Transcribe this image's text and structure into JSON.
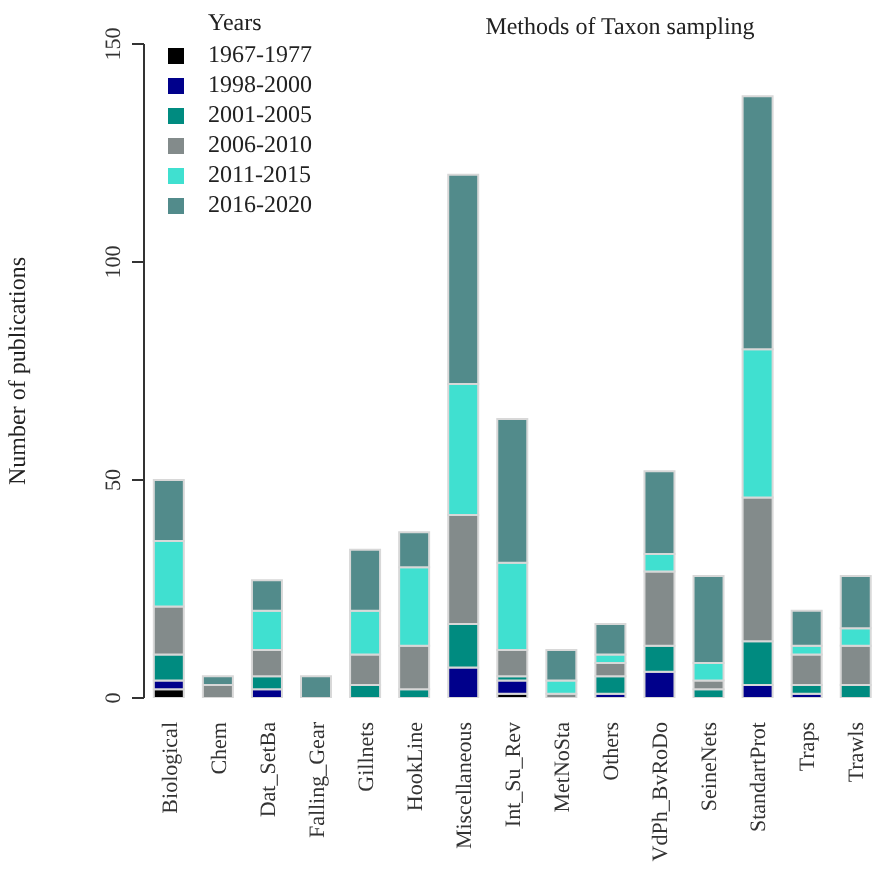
{
  "chart_data": {
    "type": "bar",
    "stacked": true,
    "title": "Methods of Taxon sampling",
    "ylabel": "Number of publications",
    "legend_title": "Years",
    "legend": "top left",
    "grid": false,
    "categories": [
      "Biological",
      "Chem",
      "Dat_SetBa",
      "Falling_Gear",
      "Gillnets",
      "HookLine",
      "Miscellaneous",
      "Int_Su_Rev",
      "MetNoSta",
      "Others",
      "VdPh_BvRoDo",
      "SeineNets",
      "StandartProt",
      "Traps",
      "Trawls"
    ],
    "ylim": [
      0,
      150
    ],
    "yticks": [
      0,
      50,
      100,
      150
    ],
    "series": [
      {
        "name": "1967-1977",
        "color": "#000000",
        "values": [
          2,
          0,
          0,
          0,
          0,
          0,
          0,
          1,
          0,
          0,
          0,
          0,
          0,
          0,
          0
        ]
      },
      {
        "name": "1998-2000",
        "color": "#00008b",
        "values": [
          2,
          0,
          2,
          0,
          0,
          0,
          7,
          3,
          0,
          1,
          6,
          0,
          3,
          1,
          0
        ]
      },
      {
        "name": "2001-2005",
        "color": "#008b80",
        "values": [
          6,
          0,
          3,
          0,
          3,
          2,
          10,
          1,
          0,
          4,
          6,
          2,
          10,
          2,
          3
        ]
      },
      {
        "name": "2006-2010",
        "color": "#838b8b",
        "values": [
          11,
          3,
          6,
          0,
          7,
          10,
          25,
          6,
          1,
          3,
          17,
          2,
          33,
          7,
          9
        ]
      },
      {
        "name": "2011-2015",
        "color": "#40e0d0",
        "values": [
          15,
          0,
          9,
          0,
          10,
          18,
          30,
          20,
          3,
          2,
          4,
          4,
          34,
          2,
          4
        ]
      },
      {
        "name": "2016-2020",
        "color": "#528b8b",
        "values": [
          14,
          2,
          7,
          5,
          14,
          8,
          48,
          33,
          7,
          7,
          19,
          20,
          58,
          8,
          12
        ]
      }
    ]
  }
}
